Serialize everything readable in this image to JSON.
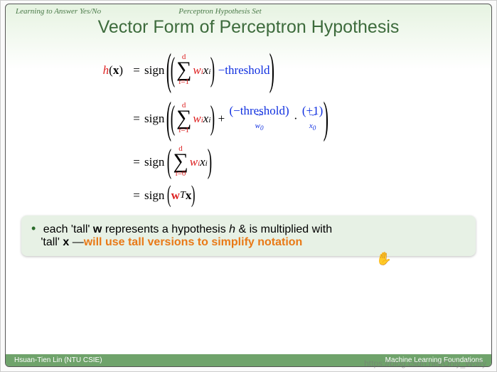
{
  "topbar": {
    "left": "Learning to Answer Yes/No",
    "mid": "Perceptron Hypothesis Set"
  },
  "title": "Vector Form of Perceptron Hypothesis",
  "math": {
    "h": "h",
    "x": "x",
    "w": "w",
    "sign": "sign",
    "threshold": "threshold",
    "sum_top": "d",
    "sum_bot1": "i=1",
    "sum_bot0": "i=0",
    "wi": "w",
    "xi": "x",
    "i": "i",
    "minus": "−",
    "plus": "+",
    "dot": "·",
    "plus1": "+1",
    "ub_w0": "w",
    "ub_x0": "x",
    "zero": "0",
    "wT": "w",
    "T": "T"
  },
  "callout": {
    "line1a": "each 'tall' ",
    "w": "w",
    "line1b": " represents a hypothesis ",
    "h": "h",
    "line1c": " & is multiplied with",
    "line2a": "'tall' ",
    "x": "x",
    "line2b": " —",
    "emph": "will use tall versions to simplify notation"
  },
  "footer": {
    "left": "Hsuan-Tien Lin  (NTU CSIE)",
    "right": "Machine Learning Foundations"
  },
  "watermark": "https://blog.csdn.net/Only_Wolfy",
  "colors": {
    "red": "#d22",
    "blue": "#1030e0",
    "green": "#3d6b3c",
    "orange": "#e97916",
    "header_grad_top": "#e6f3e1",
    "footer_bg": "#6fa36b",
    "callout_bg": "#e7f1e5"
  }
}
